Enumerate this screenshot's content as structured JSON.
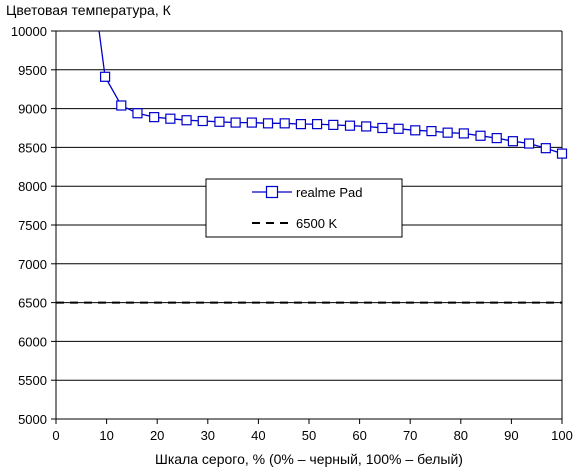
{
  "chart_data": {
    "type": "line",
    "ylabel": "Цветовая температура, К",
    "xlabel": "Шкала серого, % (0% – черный, 100% – белый)",
    "xlim": [
      0,
      100
    ],
    "ylim": [
      5000,
      10000
    ],
    "x_ticks": [
      0,
      10,
      20,
      30,
      40,
      50,
      60,
      70,
      80,
      90,
      100
    ],
    "y_ticks": [
      5000,
      5500,
      6000,
      6500,
      7000,
      7500,
      8000,
      8500,
      9000,
      9500,
      10000
    ],
    "grid": "horizontal",
    "legend_position": "center-right",
    "series": [
      {
        "name": "realme Pad",
        "color": "#0000cc",
        "marker": "square",
        "x": [
          6.5,
          9.7,
          12.9,
          16.1,
          19.4,
          22.6,
          25.8,
          29.0,
          32.3,
          35.5,
          38.7,
          41.9,
          45.2,
          48.4,
          51.6,
          54.8,
          58.1,
          61.3,
          64.5,
          67.7,
          71.0,
          74.2,
          77.4,
          80.6,
          83.9,
          87.1,
          90.3,
          93.5,
          96.8,
          100.0
        ],
        "values": [
          11000,
          9410,
          9040,
          8940,
          8890,
          8870,
          8850,
          8840,
          8830,
          8820,
          8820,
          8810,
          8810,
          8800,
          8800,
          8790,
          8780,
          8770,
          8750,
          8740,
          8720,
          8710,
          8690,
          8680,
          8650,
          8620,
          8580,
          8550,
          8490,
          8420
        ],
        "marker_from_index": 1
      },
      {
        "name": "6500 K",
        "color": "#000000",
        "style": "dashed",
        "x": [
          0,
          100
        ],
        "values": [
          6500,
          6500
        ]
      }
    ]
  }
}
